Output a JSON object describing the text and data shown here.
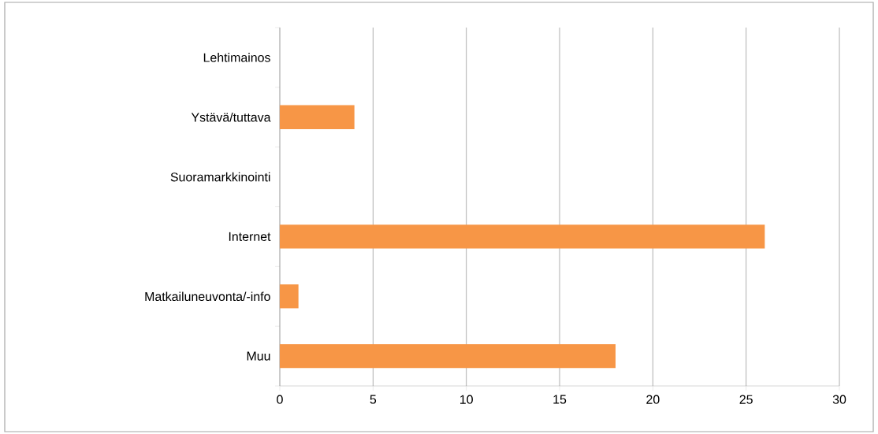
{
  "chart_data": {
    "type": "bar",
    "orientation": "horizontal",
    "categories": [
      "Lehtimainos",
      "Ystävä/tuttava",
      "Suoramarkkinointi",
      "Internet",
      "Matkailuneuvonta/-info",
      "Muu"
    ],
    "values": [
      0,
      4,
      0,
      26,
      1,
      18
    ],
    "color": "#f79646",
    "xlim": [
      0,
      30
    ],
    "xticks": [
      0,
      5,
      10,
      15,
      20,
      25,
      30
    ],
    "grid": "x"
  }
}
